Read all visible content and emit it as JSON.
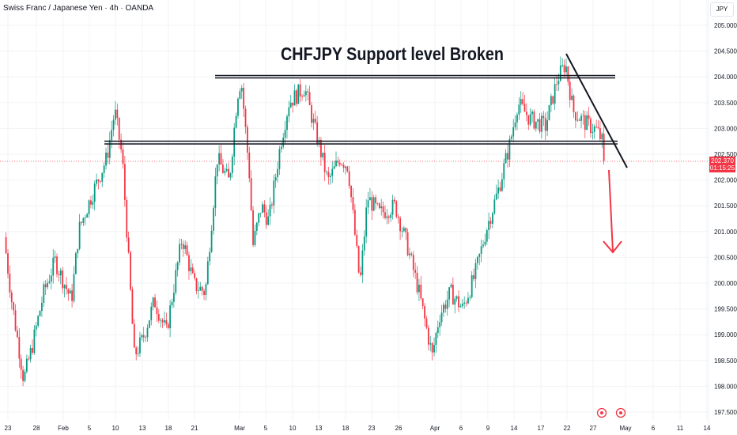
{
  "header": {
    "symbol_title": "Swiss Franc / Japanese Yen · 4h · OANDA",
    "currency": "JPY"
  },
  "price_label": {
    "price": "202.370",
    "countdown": "01:15:25"
  },
  "annotation": {
    "title": "CHFJPY Support level Broken"
  },
  "colors": {
    "up": "#089981",
    "down": "#f23645",
    "grid": "#f2f3f5",
    "drawing": "#131722",
    "arrow": "#f23645"
  },
  "chart_data": {
    "type": "candlestick",
    "title": "CHFJPY Support level Broken",
    "ylim": [
      197.5,
      205.0
    ],
    "y_ticks": [
      "205.000",
      "204.500",
      "204.000",
      "203.500",
      "203.000",
      "202.500",
      "202.000",
      "201.500",
      "201.000",
      "200.500",
      "200.000",
      "199.500",
      "199.000",
      "198.500",
      "198.000",
      "197.500"
    ],
    "x_ticks": [
      "23",
      "28",
      "Feb",
      "5",
      "10",
      "13",
      "18",
      "21",
      "Mar",
      "5",
      "10",
      "13",
      "18",
      "23",
      "26",
      "Apr",
      "6",
      "9",
      "14",
      "17",
      "22",
      "27",
      "May",
      "6",
      "11",
      "14"
    ],
    "resistance_level": 204.0,
    "support_level": 202.73,
    "last_price": 202.37,
    "price_path": [
      {
        "day": -0.6,
        "price": 200.89
      },
      {
        "day": 0.6,
        "price": 199.66
      },
      {
        "day": 2.5,
        "price": 198.13
      },
      {
        "day": 3.8,
        "price": 198.74
      },
      {
        "day": 5.7,
        "price": 199.82
      },
      {
        "day": 7.5,
        "price": 200.43
      },
      {
        "day": 10.1,
        "price": 199.66
      },
      {
        "day": 11.3,
        "price": 201.04
      },
      {
        "day": 13.2,
        "price": 201.66
      },
      {
        "day": 15.7,
        "price": 202.42
      },
      {
        "day": 17.0,
        "price": 203.34
      },
      {
        "day": 18.2,
        "price": 202.42
      },
      {
        "day": 18.9,
        "price": 201.04
      },
      {
        "day": 20.1,
        "price": 198.59
      },
      {
        "day": 21.4,
        "price": 198.9
      },
      {
        "day": 23.3,
        "price": 199.66
      },
      {
        "day": 25.2,
        "price": 199.05
      },
      {
        "day": 27.7,
        "price": 200.89
      },
      {
        "day": 29.6,
        "price": 199.97
      },
      {
        "day": 31.4,
        "price": 199.82
      },
      {
        "day": 33.3,
        "price": 202.42
      },
      {
        "day": 35.2,
        "price": 201.96
      },
      {
        "day": 36.5,
        "price": 203.65
      },
      {
        "day": 37.1,
        "price": 203.96
      },
      {
        "day": 38.4,
        "price": 202.12
      },
      {
        "day": 39.0,
        "price": 200.74
      },
      {
        "day": 40.3,
        "price": 201.5
      },
      {
        "day": 41.5,
        "price": 201.2
      },
      {
        "day": 43.4,
        "price": 202.73
      },
      {
        "day": 44.7,
        "price": 203.5
      },
      {
        "day": 47.2,
        "price": 203.8
      },
      {
        "day": 48.4,
        "price": 203.19
      },
      {
        "day": 49.7,
        "price": 202.58
      },
      {
        "day": 50.9,
        "price": 201.96
      },
      {
        "day": 52.8,
        "price": 202.42
      },
      {
        "day": 54.1,
        "price": 202.27
      },
      {
        "day": 56.0,
        "price": 199.97
      },
      {
        "day": 57.2,
        "price": 201.66
      },
      {
        "day": 59.1,
        "price": 201.35
      },
      {
        "day": 61.6,
        "price": 201.5
      },
      {
        "day": 63.5,
        "price": 200.74
      },
      {
        "day": 65.4,
        "price": 199.82
      },
      {
        "day": 66.7,
        "price": 199.05
      },
      {
        "day": 67.5,
        "price": 198.59
      },
      {
        "day": 68.6,
        "price": 199.36
      },
      {
        "day": 70.4,
        "price": 199.82
      },
      {
        "day": 72.3,
        "price": 199.51
      },
      {
        "day": 74.2,
        "price": 200.12
      },
      {
        "day": 76.1,
        "price": 201.04
      },
      {
        "day": 78.0,
        "price": 201.81
      },
      {
        "day": 79.9,
        "price": 202.73
      },
      {
        "day": 81.1,
        "price": 203.5
      },
      {
        "day": 83.0,
        "price": 203.19
      },
      {
        "day": 85.5,
        "price": 203.04
      },
      {
        "day": 87.4,
        "price": 203.96
      },
      {
        "day": 88.7,
        "price": 204.26
      },
      {
        "day": 89.9,
        "price": 203.34
      },
      {
        "day": 91.8,
        "price": 203.11
      },
      {
        "day": 93.7,
        "price": 202.96
      },
      {
        "day": 94.6,
        "price": 202.73
      },
      {
        "day": 95.0,
        "price": 202.37
      }
    ]
  }
}
